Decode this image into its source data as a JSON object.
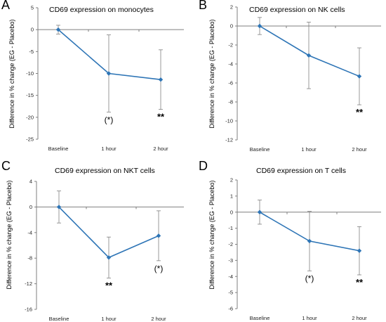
{
  "chart_data": [
    {
      "type": "line",
      "panel_letter": "A",
      "title": "CD69 expression on monocytes",
      "ylabel": "Difference in % change (EG - Placebo)",
      "xlabel": "",
      "categories": [
        "Baseline",
        "1 hour",
        "2 hour"
      ],
      "series": [
        {
          "values": [
            0,
            -10,
            -11.4
          ],
          "errors": [
            1.0,
            8.8,
            6.8
          ]
        }
      ],
      "significance": [
        "",
        "(*)",
        "**"
      ],
      "ylim": [
        -25,
        5
      ],
      "yticks": [
        5,
        0,
        -5,
        -10,
        -15,
        -20,
        -25
      ],
      "ytick_labels": [
        "5",
        "0",
        "-5",
        "-10",
        "-15",
        "-20",
        "-25"
      ],
      "line_color": "#2E75B6",
      "grid": false
    },
    {
      "type": "line",
      "panel_letter": "B",
      "title": "CD69 expression on NK cells",
      "ylabel": "Difference in % change (EG - Placebo)",
      "xlabel": "",
      "categories": [
        "Baseline",
        "1 hour",
        "2 hour"
      ],
      "series": [
        {
          "values": [
            0,
            -3.1,
            -5.3
          ],
          "errors": [
            0.9,
            3.5,
            3.0
          ]
        }
      ],
      "significance": [
        "",
        "",
        "**"
      ],
      "ylim": [
        -12,
        2
      ],
      "yticks": [
        2,
        0,
        -2,
        -4,
        -6,
        -8,
        -10,
        -12
      ],
      "ytick_labels": [
        "2",
        "0",
        "-2",
        "-4",
        "-6",
        "-8",
        "-10",
        "-12"
      ],
      "line_color": "#2E75B6",
      "grid": false
    },
    {
      "type": "line",
      "panel_letter": "C",
      "title": "CD69 expression on NKT cells",
      "ylabel": "Difference in % change (EG - Placebo)",
      "xlabel": "",
      "categories": [
        "Baseline",
        "1 hour",
        "2 hour"
      ],
      "series": [
        {
          "values": [
            0,
            -7.9,
            -4.5
          ],
          "errors": [
            2.5,
            3.2,
            3.9
          ]
        }
      ],
      "significance": [
        "",
        "**",
        "(*)"
      ],
      "ylim": [
        -16,
        4
      ],
      "yticks": [
        4,
        0,
        -4,
        -8,
        -12,
        -16
      ],
      "ytick_labels": [
        "4",
        "0",
        "-4",
        "-8",
        "-12",
        "-16"
      ],
      "line_color": "#2E75B6",
      "grid": false
    },
    {
      "type": "line",
      "panel_letter": "D",
      "title": "CD69 expression on T cells",
      "ylabel": "Difference in % change (EG - Placebo)",
      "xlabel": "",
      "categories": [
        "Baseline",
        "1 hour",
        "2 hour"
      ],
      "series": [
        {
          "values": [
            0,
            -1.8,
            -2.4
          ],
          "errors": [
            0.75,
            1.85,
            1.5
          ]
        }
      ],
      "significance": [
        "",
        "(*)",
        "**"
      ],
      "ylim": [
        -6,
        2
      ],
      "yticks": [
        2,
        1,
        0,
        -1,
        -2,
        -3,
        -4,
        -5,
        -6
      ],
      "ytick_labels": [
        "2",
        "1",
        "0",
        "-1",
        "-2",
        "-3",
        "-4",
        "-5",
        "-6"
      ],
      "line_color": "#2E75B6",
      "grid": false
    }
  ]
}
